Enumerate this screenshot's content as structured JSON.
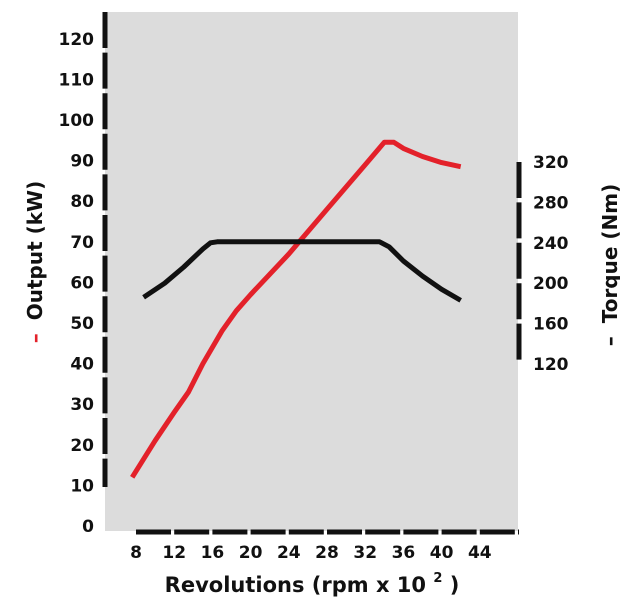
{
  "chart_data": {
    "type": "line",
    "title": "",
    "xlabel_prefix": "Revolutions (rpm x 10",
    "xlabel_sup": "2",
    "xlabel_suffix": ")",
    "ylabel_left_marker": "–",
    "ylabel_left": "Output (kW)",
    "ylabel_right_marker": "–",
    "ylabel_right": "Torque (Nm)",
    "x_ticks": [
      8,
      12,
      16,
      20,
      24,
      28,
      32,
      36,
      40,
      44
    ],
    "y_left_ticks": [
      0,
      10,
      20,
      30,
      40,
      50,
      60,
      70,
      80,
      90,
      100,
      110,
      120
    ],
    "y_left_lim": [
      0,
      120
    ],
    "y_right_ticks": [
      120,
      160,
      200,
      240,
      280,
      320
    ],
    "y_right_lim": [
      120,
      320
    ],
    "x_lim": [
      8,
      44
    ],
    "series": [
      {
        "color": "#e3212a",
        "axis": "left",
        "points": [
          [
            7.6,
            12
          ],
          [
            10,
            21
          ],
          [
            12,
            28
          ],
          [
            13.5,
            33
          ],
          [
            15,
            40
          ],
          [
            17,
            48
          ],
          [
            18.5,
            53
          ],
          [
            20,
            57
          ],
          [
            24,
            67
          ],
          [
            28,
            78
          ],
          [
            32,
            89
          ],
          [
            34,
            94.5
          ],
          [
            35,
            94.5
          ],
          [
            36,
            93
          ],
          [
            38,
            91
          ],
          [
            40,
            89.5
          ],
          [
            42,
            88.5
          ]
        ]
      },
      {
        "color": "#111111",
        "axis": "right",
        "points": [
          [
            8.8,
            186
          ],
          [
            11,
            200
          ],
          [
            13,
            216
          ],
          [
            15,
            234
          ],
          [
            15.8,
            240
          ],
          [
            16.5,
            241
          ],
          [
            18,
            241
          ],
          [
            22,
            241
          ],
          [
            26,
            241
          ],
          [
            30,
            241
          ],
          [
            33.5,
            241
          ],
          [
            34.5,
            236
          ],
          [
            36,
            222
          ],
          [
            38,
            207
          ],
          [
            40,
            194
          ],
          [
            42,
            183
          ]
        ]
      }
    ],
    "colors": {
      "plot_background": "#dcdcdc",
      "output_series": "#e3212a",
      "torque_series": "#111111"
    },
    "grid": false
  }
}
